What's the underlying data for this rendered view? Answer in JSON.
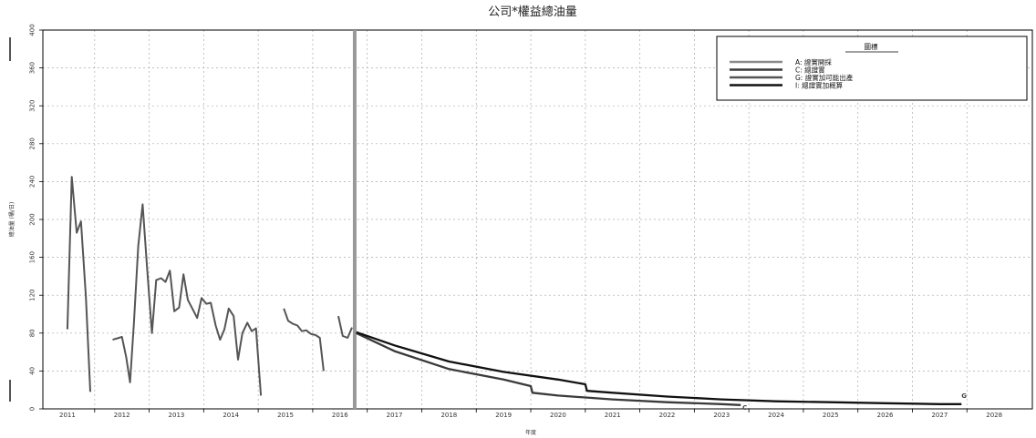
{
  "chart_data": {
    "type": "line",
    "title": "公司*權益總油量",
    "xlabel": "年度",
    "ylabel": "總油量 (桶/日)",
    "xlim": [
      2010.55,
      2028.7
    ],
    "ylim": [
      0,
      400
    ],
    "grid": true,
    "x_ticks": [
      "2011",
      "2012",
      "2013",
      "2014",
      "2015",
      "2016",
      "2017",
      "2018",
      "2019",
      "2020",
      "2021",
      "2022",
      "2023",
      "2024",
      "2025",
      "2026",
      "2027",
      "2028"
    ],
    "y_ticks": [
      "0",
      "40",
      "80",
      "120",
      "160",
      "200",
      "240",
      "280",
      "320",
      "360",
      "400"
    ],
    "forecast_start": 2016.27,
    "legend": {
      "title": "圖標",
      "position": "top-right",
      "entries": [
        {
          "label": "A: 證實開採",
          "color": "#8a8a8a"
        },
        {
          "label": "C: 總證實",
          "color": "#3a3a3a"
        },
        {
          "label": "G: 證實加可能出產",
          "color": "#555555"
        },
        {
          "label": "I: 總證實加概算",
          "color": "#111111"
        }
      ]
    },
    "series": [
      {
        "key": "history",
        "color": "#555555",
        "segments": [
          [
            [
              2011.0,
              84
            ],
            [
              2011.08,
              245
            ],
            [
              2011.17,
              186
            ],
            [
              2011.25,
              198
            ],
            [
              2011.34,
              118
            ],
            [
              2011.42,
              18
            ]
          ],
          [
            [
              2011.83,
              73
            ],
            [
              2012.0,
              76
            ],
            [
              2012.08,
              54
            ],
            [
              2012.15,
              28
            ],
            [
              2012.22,
              90
            ],
            [
              2012.3,
              172
            ],
            [
              2012.38,
              216
            ],
            [
              2012.46,
              150
            ],
            [
              2012.55,
              80
            ],
            [
              2012.63,
              136
            ],
            [
              2012.72,
              138
            ],
            [
              2012.8,
              134
            ],
            [
              2012.88,
              146
            ],
            [
              2012.96,
              103
            ],
            [
              2013.05,
              107
            ],
            [
              2013.13,
              142
            ],
            [
              2013.21,
              115
            ],
            [
              2013.3,
              105
            ],
            [
              2013.38,
              96
            ],
            [
              2013.46,
              117
            ],
            [
              2013.55,
              111
            ],
            [
              2013.63,
              112
            ],
            [
              2013.72,
              88
            ],
            [
              2013.8,
              73
            ],
            [
              2013.88,
              84
            ],
            [
              2013.96,
              106
            ],
            [
              2014.05,
              98
            ],
            [
              2014.13,
              52
            ],
            [
              2014.21,
              80
            ],
            [
              2014.3,
              91
            ],
            [
              2014.38,
              82
            ],
            [
              2014.46,
              85
            ],
            [
              2014.55,
              14
            ]
          ],
          [
            [
              2014.97,
              106
            ],
            [
              2015.05,
              93
            ],
            [
              2015.13,
              90
            ],
            [
              2015.22,
              88
            ],
            [
              2015.3,
              82
            ],
            [
              2015.38,
              83
            ],
            [
              2015.47,
              79
            ],
            [
              2015.55,
              78
            ],
            [
              2015.63,
              75
            ],
            [
              2015.7,
              40
            ]
          ],
          [
            [
              2015.97,
              98
            ],
            [
              2016.05,
              77
            ],
            [
              2016.14,
              75
            ],
            [
              2016.22,
              86
            ]
          ]
        ]
      },
      {
        "key": "C",
        "name": "C: 總證實",
        "color": "#3a3a3a",
        "points": [
          [
            2016.3,
            80
          ],
          [
            2017.0,
            61
          ],
          [
            2018.0,
            42
          ],
          [
            2019.0,
            31
          ],
          [
            2019.5,
            24
          ],
          [
            2019.53,
            17
          ],
          [
            2020.0,
            14
          ],
          [
            2021.0,
            10
          ],
          [
            2022.0,
            7
          ],
          [
            2023.0,
            5
          ],
          [
            2023.35,
            4
          ]
        ],
        "end_marker": "C"
      },
      {
        "key": "I",
        "name": "I: 總證實加概算",
        "color": "#111111",
        "points": [
          [
            2016.3,
            81
          ],
          [
            2017.0,
            67
          ],
          [
            2018.0,
            50
          ],
          [
            2019.0,
            39
          ],
          [
            2020.0,
            31
          ],
          [
            2020.5,
            26
          ],
          [
            2020.53,
            19
          ],
          [
            2021.0,
            17
          ],
          [
            2022.0,
            13
          ],
          [
            2023.0,
            10
          ],
          [
            2024.0,
            8
          ],
          [
            2025.0,
            7
          ],
          [
            2026.0,
            6
          ],
          [
            2027.0,
            5
          ],
          [
            2027.4,
            5
          ]
        ],
        "end_marker": "G"
      }
    ]
  }
}
